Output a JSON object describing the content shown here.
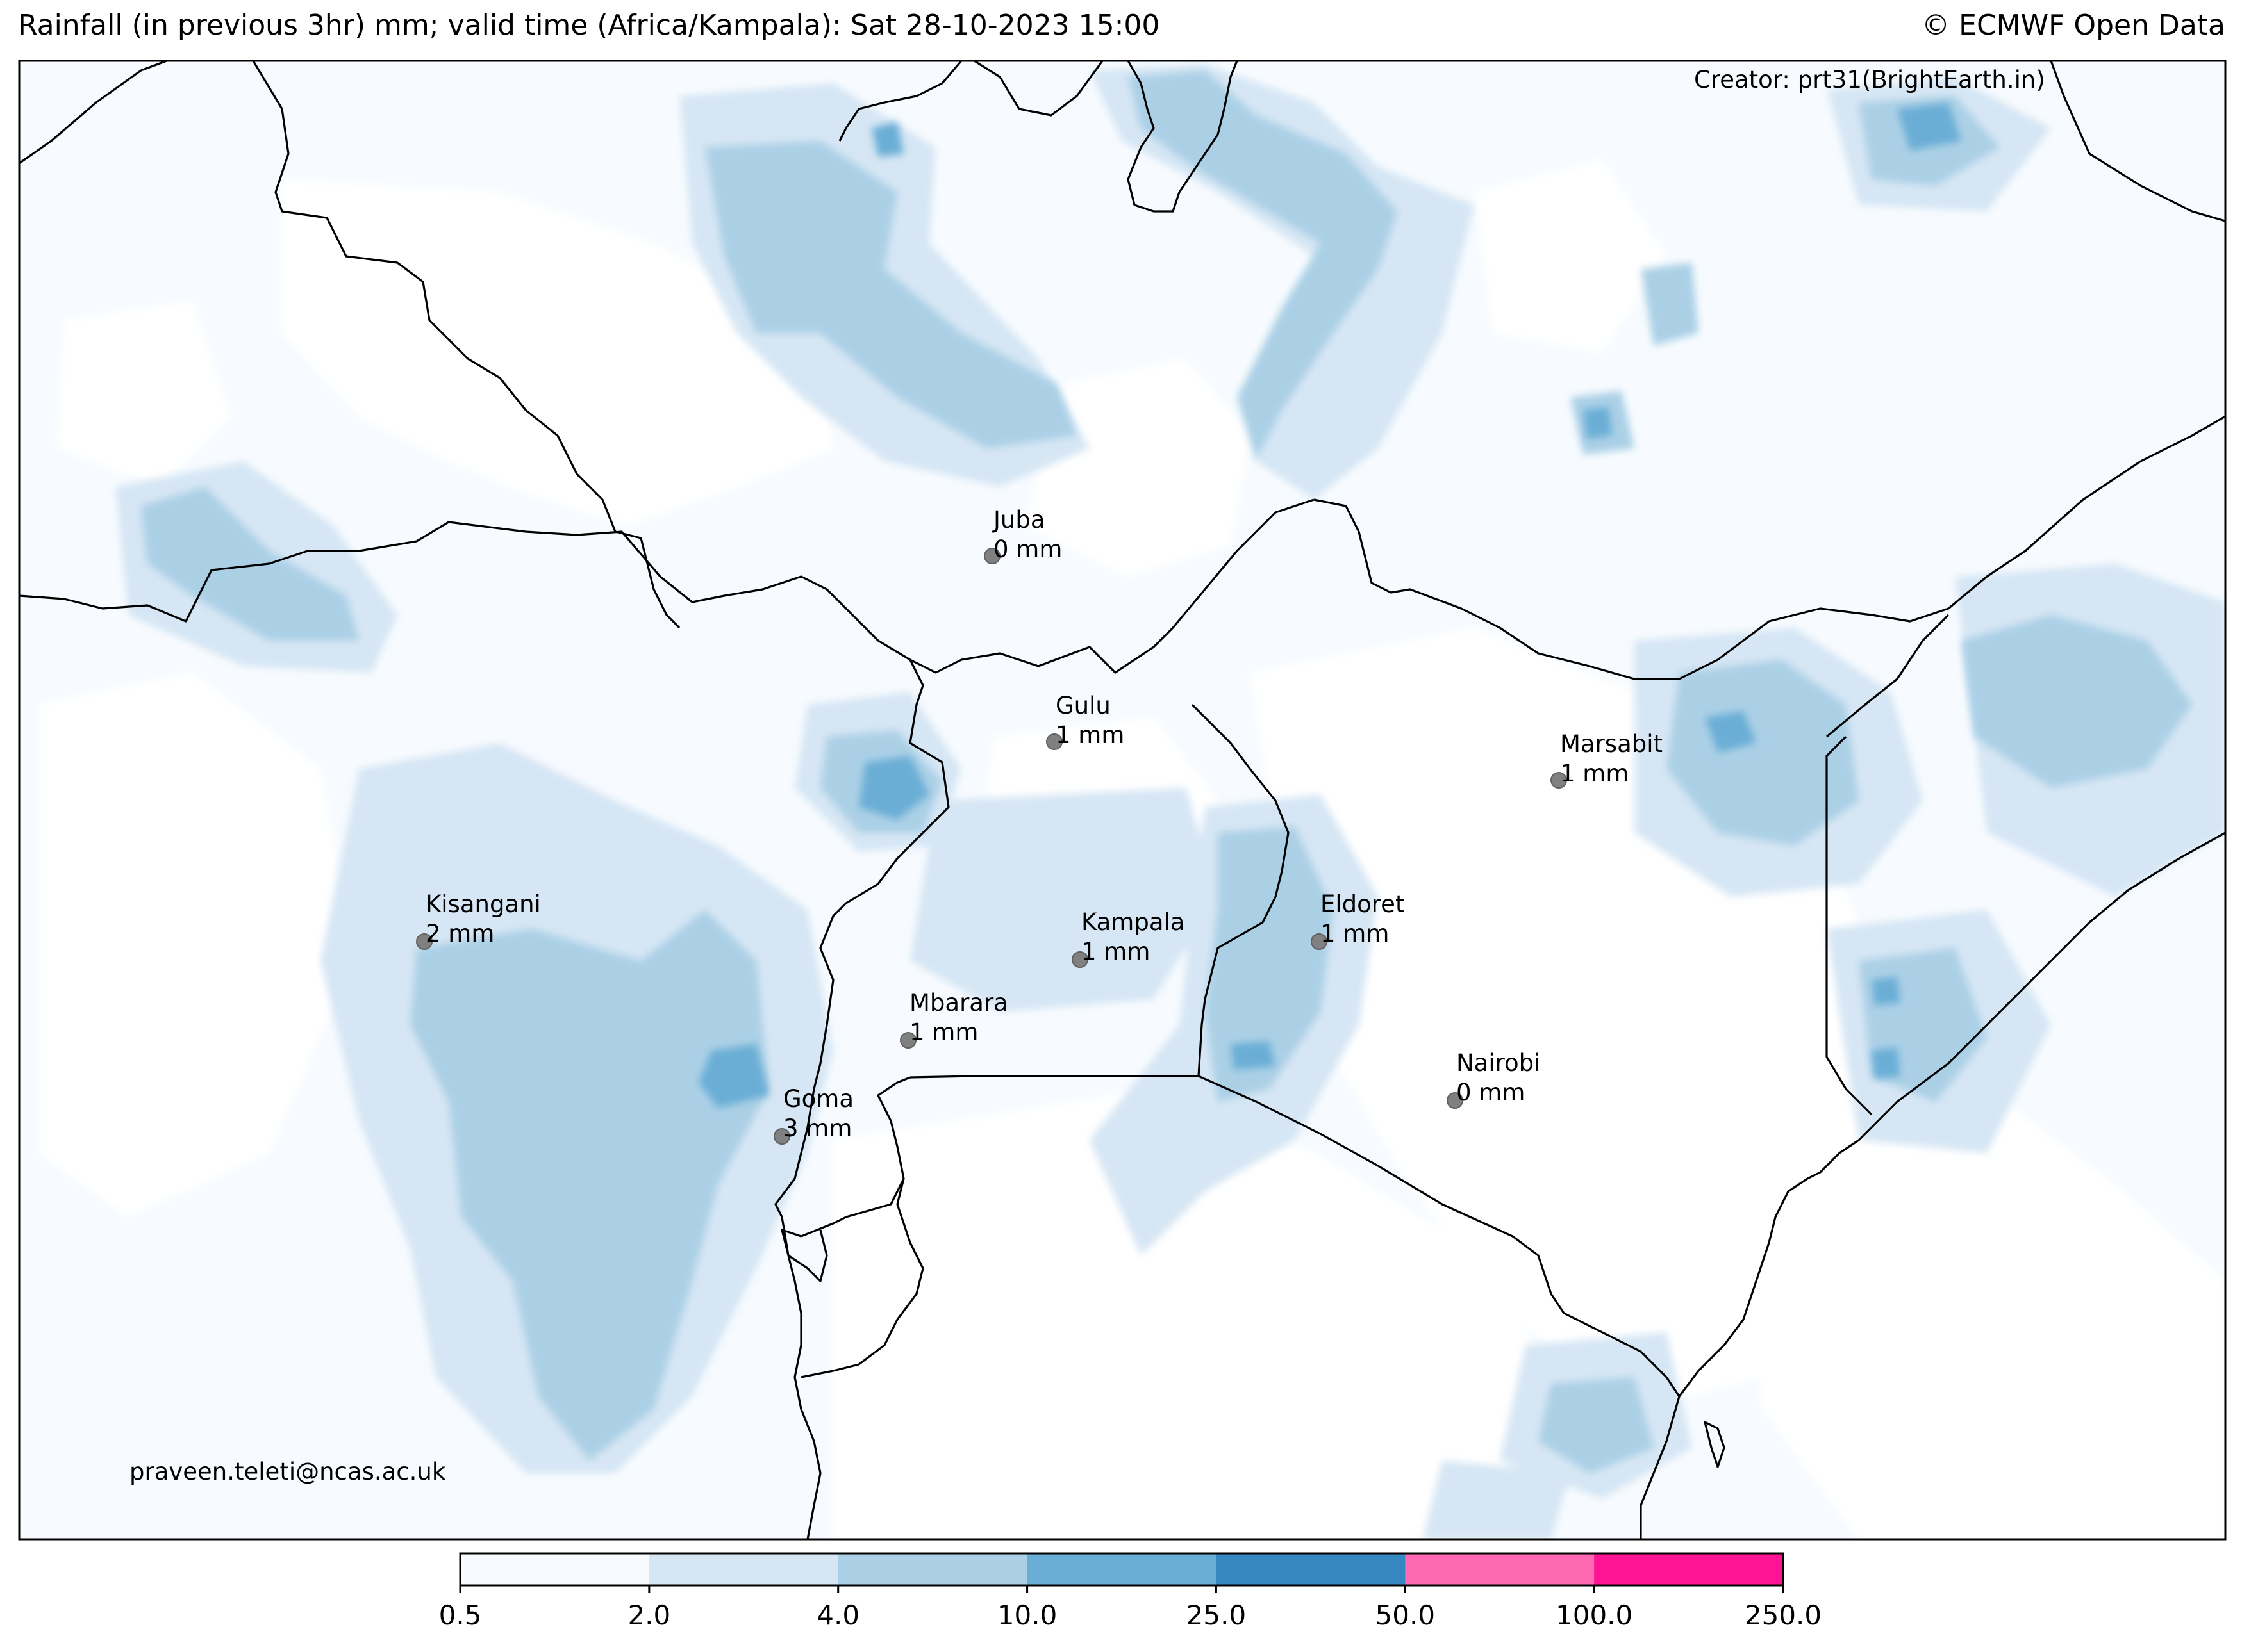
{
  "header": {
    "title": "Rainfall (in previous 3hr) mm; valid time (Africa/Kampala): Sat 28-10-2023 15:00",
    "credit": "© ECMWF Open Data"
  },
  "map": {
    "creator": "Creator: prt31(BrightEarth.in)",
    "email": "praveen.teleti@ncas.ac.uk",
    "cities": [
      {
        "name": "Juba",
        "rain": "0 mm"
      },
      {
        "name": "Gulu",
        "rain": "1 mm"
      },
      {
        "name": "Marsabit",
        "rain": "1 mm"
      },
      {
        "name": "Kisangani",
        "rain": "2 mm"
      },
      {
        "name": "Eldoret",
        "rain": "1 mm"
      },
      {
        "name": "Kampala",
        "rain": "1 mm"
      },
      {
        "name": "Mbarara",
        "rain": "1 mm"
      },
      {
        "name": "Nairobi",
        "rain": "0 mm"
      },
      {
        "name": "Goma",
        "rain": "3 mm"
      }
    ]
  },
  "colorbar": {
    "ticks": [
      "0.5",
      "2.0",
      "4.0",
      "10.0",
      "25.0",
      "50.0",
      "100.0",
      "250.0"
    ],
    "colors": [
      "#f7fbff",
      "#d6e6f4",
      "#abd0e6",
      "#6aaed6",
      "#3787c0",
      "#ff69b4",
      "#ff1493"
    ]
  }
}
